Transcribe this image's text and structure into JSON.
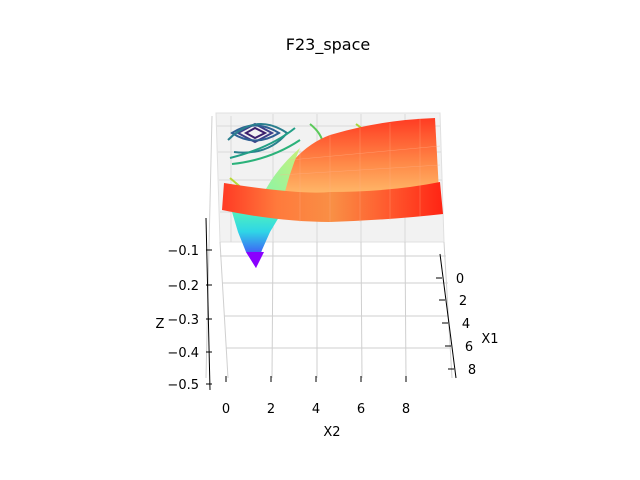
{
  "chart_data": {
    "type": "surface3d",
    "title": "F23_space",
    "xlabel": "X1",
    "ylabel": "X2",
    "zlabel": "Z",
    "x_ticks": [
      "0",
      "2",
      "4",
      "6",
      "8"
    ],
    "y_ticks": [
      "0",
      "2",
      "4",
      "6",
      "8"
    ],
    "z_ticks": [
      "−0.1",
      "−0.2",
      "−0.3",
      "−0.4",
      "−0.5"
    ],
    "xlim": [
      0,
      9
    ],
    "ylim": [
      0,
      9
    ],
    "zlim": [
      -0.5,
      -0.05
    ],
    "colormap": "rainbow",
    "contour_projection": "top",
    "grid": true,
    "surface_description_values": {
      "minimum_z": -0.5,
      "minimum_near_x2": 1.2
    }
  }
}
